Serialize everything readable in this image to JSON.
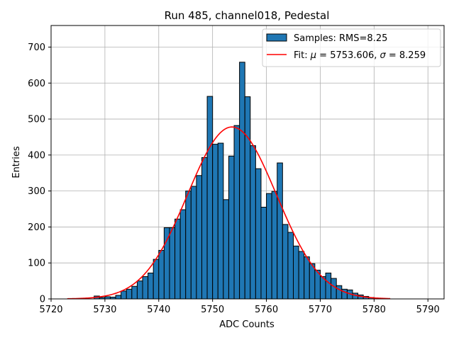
{
  "chart_data": {
    "type": "bar",
    "title": "Run 485, channel018, Pedestal",
    "xlabel": "ADC Counts",
    "ylabel": "Entries",
    "xlim": [
      5720,
      5793
    ],
    "ylim": [
      0,
      760
    ],
    "xticks": [
      5720,
      5730,
      5740,
      5750,
      5760,
      5770,
      5780,
      5790
    ],
    "yticks": [
      0,
      100,
      200,
      300,
      400,
      500,
      600,
      700
    ],
    "grid": true,
    "legend_position": "top-right",
    "bin_edges_start": 5723,
    "bin_width": 1,
    "histogram": {
      "name": "Samples: RMS=8.25",
      "color": "#1f77b4",
      "edgecolor": "#000000",
      "values": [
        0,
        0,
        0,
        0,
        0,
        8,
        4,
        6,
        5,
        10,
        22,
        27,
        35,
        50,
        62,
        72,
        110,
        135,
        198,
        198,
        222,
        248,
        300,
        313,
        343,
        393,
        563,
        430,
        433,
        276,
        397,
        482,
        658,
        562,
        426,
        362,
        255,
        293,
        299,
        378,
        207,
        185,
        147,
        132,
        117,
        98,
        80,
        62,
        72,
        57,
        37,
        27,
        25,
        16,
        11,
        7,
        4,
        2,
        1,
        0
      ]
    },
    "fit": {
      "name": "Fit: μ = 5753.606, σ = 8.259",
      "color": "#ff0000",
      "mu": 5753.606,
      "sigma": 8.259,
      "amplitude": 478,
      "x_range": [
        5723,
        5783
      ]
    },
    "legend_labels": {
      "hist_prefix": "Samples: RMS=8.25",
      "fit_prefix": "Fit: ",
      "mu_symbol": "μ",
      "mu_text": " = 5753.606, ",
      "sigma_symbol": "σ",
      "sigma_text": " = 8.259"
    }
  }
}
